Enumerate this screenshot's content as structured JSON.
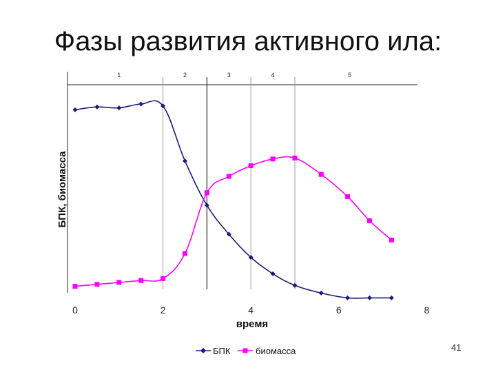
{
  "slide": {
    "title": "Фазы развития активного ила:",
    "number": "41"
  },
  "colors": {
    "bpk": "#1a1a7a",
    "biomass": "#ff00ff",
    "axis": "#222222",
    "grid": "#999999"
  },
  "chart_data": {
    "type": "line",
    "xlabel": "время",
    "ylabel": "БПК, биомасса",
    "xlim": [
      0,
      8
    ],
    "x_ticks": [
      "0",
      "2",
      "4",
      "6",
      "8"
    ],
    "phase_labels": [
      "1",
      "2",
      "3",
      "4",
      "5"
    ],
    "phase_boundaries": [
      2,
      3,
      4,
      5
    ],
    "y_tick_labels": false,
    "grid": false,
    "legend_position": "bottom",
    "series": [
      {
        "name": "БПК",
        "marker": "diamond",
        "x": [
          0,
          0.5,
          1,
          1.5,
          2,
          2.5,
          3,
          3.5,
          4,
          4.5,
          5,
          5.6,
          6.2,
          6.7,
          7.2
        ],
        "y": [
          89.5,
          91,
          90.5,
          92.5,
          91.5,
          63,
          40,
          25,
          13,
          4.5,
          -1.5,
          -5.5,
          -8,
          -8,
          -8
        ]
      },
      {
        "name": "биомасса",
        "marker": "square",
        "x": [
          0,
          0.5,
          1,
          1.5,
          2,
          2.5,
          3,
          3.5,
          4,
          4.5,
          5,
          5.6,
          6.2,
          6.7,
          7.2
        ],
        "y": [
          -2,
          -1,
          0,
          1,
          2,
          15,
          46.5,
          55,
          60.5,
          64,
          64.5,
          56,
          44.5,
          32,
          22
        ]
      }
    ]
  }
}
